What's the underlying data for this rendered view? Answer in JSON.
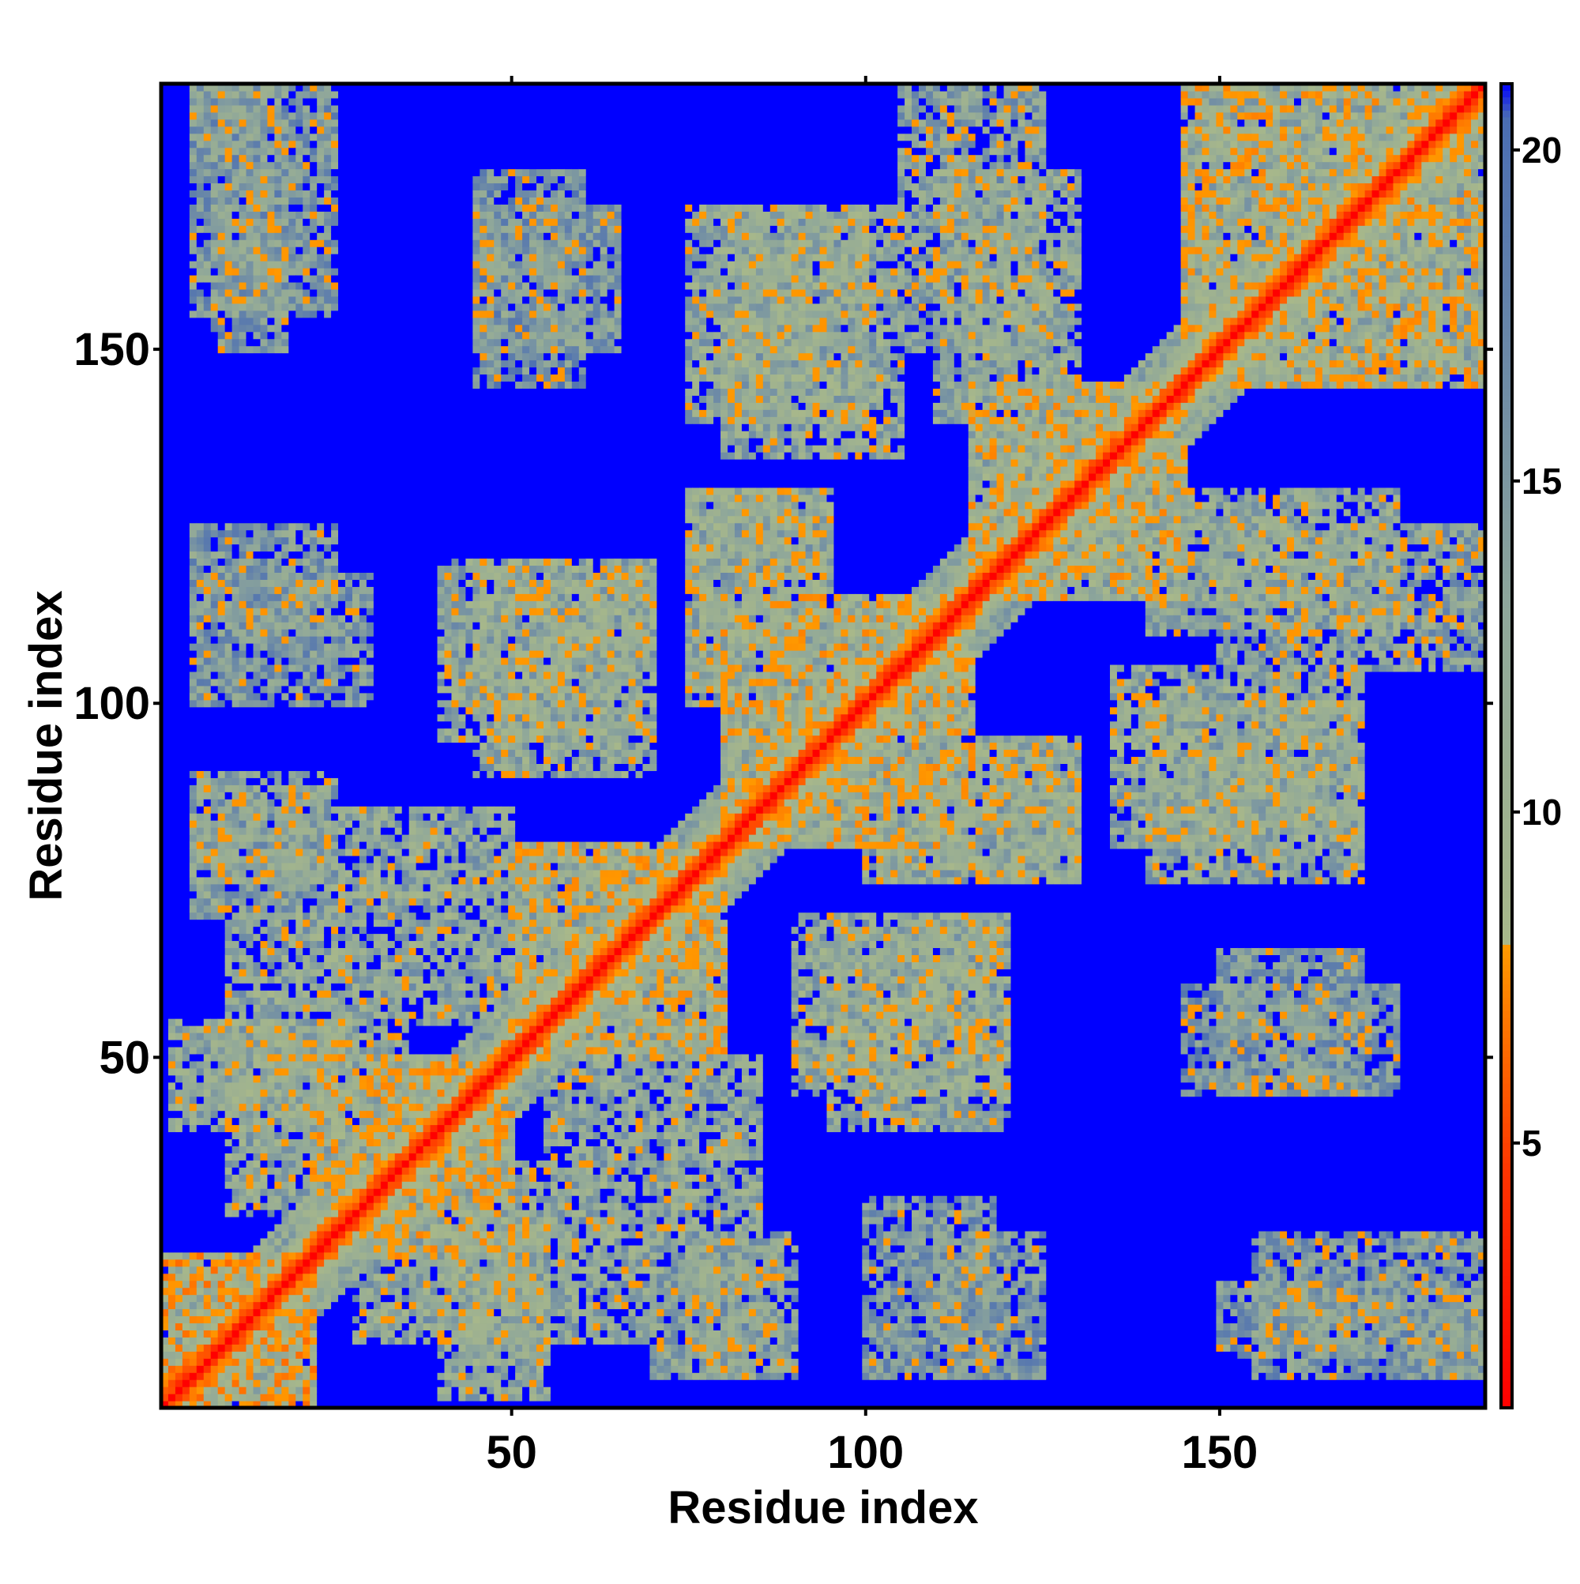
{
  "chart_data": {
    "type": "heatmap",
    "title": "",
    "xlabel": "Residue index",
    "ylabel": "Residue index",
    "n_residues": 187,
    "xlim": [
      0.5,
      187.5
    ],
    "ylim": [
      0.5,
      187.5
    ],
    "x_ticks": [
      50,
      100,
      150
    ],
    "y_ticks": [
      50,
      100,
      150
    ],
    "x_tick_labels": [
      "50",
      "100",
      "150"
    ],
    "y_tick_labels": [
      "50",
      "100",
      "150"
    ],
    "colorbar": {
      "range": [
        1,
        21
      ],
      "ticks": [
        5,
        10,
        15,
        20
      ],
      "tick_labels": [
        "5",
        "10",
        "15",
        "20"
      ],
      "stops": [
        {
          "value": 1,
          "color": "#ff0000"
        },
        {
          "value": 4.5,
          "color": "#ff3300"
        },
        {
          "value": 8,
          "color": "#ff9900"
        },
        {
          "value": 8.01,
          "color": "#a8b88a"
        },
        {
          "value": 13,
          "color": "#8fa79a"
        },
        {
          "value": 20.5,
          "color": "#4a6db3"
        },
        {
          "value": 21,
          "color": "#0000ff"
        }
      ]
    },
    "background_value": 21,
    "matrix_symmetric": true,
    "diagonal": {
      "value_on_diagonal": 1,
      "band_width_residues": 5
    },
    "contact_regions": [
      {
        "x": [
          1,
          22
        ],
        "y": [
          1,
          22
        ],
        "mean": 10
      },
      {
        "x": [
          22,
          50
        ],
        "y": [
          22,
          50
        ],
        "mean": 11
      },
      {
        "x": [
          50,
          80
        ],
        "y": [
          50,
          80
        ],
        "mean": 11
      },
      {
        "x": [
          80,
          115
        ],
        "y": [
          80,
          115
        ],
        "mean": 11
      },
      {
        "x": [
          115,
          145
        ],
        "y": [
          115,
          145
        ],
        "mean": 11
      },
      {
        "x": [
          145,
          187
        ],
        "y": [
          145,
          187
        ],
        "mean": 11
      },
      {
        "x": [
          2,
          28
        ],
        "y": [
          40,
          55
        ],
        "mean": 12
      },
      {
        "x": [
          5,
          25
        ],
        "y": [
          75,
          88
        ],
        "mean": 13
      },
      {
        "x": [
          5,
          30
        ],
        "y": [
          100,
          118
        ],
        "mean": 14
      },
      {
        "x": [
          5,
          25
        ],
        "y": [
          155,
          187
        ],
        "mean": 14
      },
      {
        "x": [
          28,
          70
        ],
        "y": [
          10,
          35
        ],
        "mean": 12
      },
      {
        "x": [
          40,
          70
        ],
        "y": [
          95,
          120
        ],
        "mean": 12
      },
      {
        "x": [
          45,
          65
        ],
        "y": [
          150,
          170
        ],
        "mean": 14
      },
      {
        "x": [
          55,
          85
        ],
        "y": [
          25,
          50
        ],
        "mean": 12
      },
      {
        "x": [
          70,
          90
        ],
        "y": [
          5,
          25
        ],
        "mean": 13
      },
      {
        "x": [
          75,
          95
        ],
        "y": [
          100,
          130
        ],
        "mean": 12
      },
      {
        "x": [
          75,
          100
        ],
        "y": [
          140,
          170
        ],
        "mean": 12
      },
      {
        "x": [
          90,
          120
        ],
        "y": [
          45,
          70
        ],
        "mean": 12
      },
      {
        "x": [
          100,
          130
        ],
        "y": [
          75,
          95
        ],
        "mean": 12
      },
      {
        "x": [
          110,
          125
        ],
        "y": [
          5,
          25
        ],
        "mean": 14
      },
      {
        "x": [
          110,
          130
        ],
        "y": [
          140,
          175
        ],
        "mean": 12
      },
      {
        "x": [
          135,
          170
        ],
        "y": [
          80,
          105
        ],
        "mean": 12
      },
      {
        "x": [
          150,
          187
        ],
        "y": [
          105,
          125
        ],
        "mean": 13
      },
      {
        "x": [
          150,
          187
        ],
        "y": [
          145,
          187
        ],
        "mean": 12
      },
      {
        "x": [
          145,
          175
        ],
        "y": [
          45,
          60
        ],
        "mean": 15
      },
      {
        "x": [
          150,
          187
        ],
        "y": [
          8,
          18
        ],
        "mean": 14
      }
    ]
  }
}
